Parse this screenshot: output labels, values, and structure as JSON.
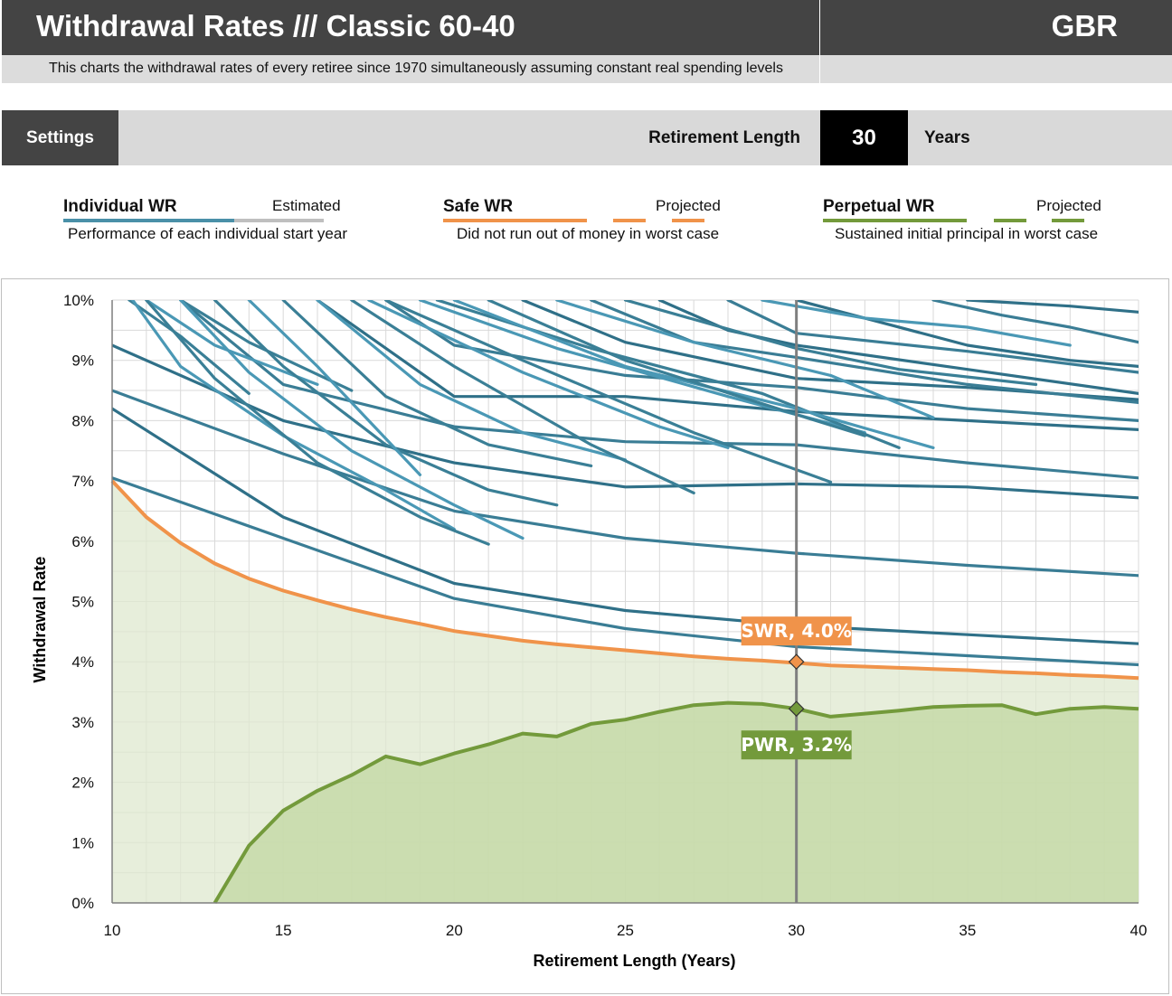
{
  "header": {
    "title": "Withdrawal Rates /// Classic 60-40",
    "country": "GBR",
    "subtitle": "This charts the withdrawal rates of every retiree since 1970 simultaneously assuming constant real spending levels"
  },
  "settings": {
    "button_label": "Settings",
    "retirement_length_label": "Retirement Length",
    "retirement_length_value": "30",
    "retirement_length_unit": "Years"
  },
  "legend": {
    "individual": {
      "title": "Individual WR",
      "projected_label": "Estimated",
      "description": "Performance of each individual start year",
      "color": "#4a90a8",
      "estimated_color": "#bfbfbf"
    },
    "safe": {
      "title": "Safe WR",
      "projected_label": "Projected",
      "description": "Did not run out of money in worst case",
      "color": "#f0934a"
    },
    "perpetual": {
      "title": "Perpetual WR",
      "projected_label": "Projected",
      "description": "Sustained initial principal in worst case",
      "color": "#739a3b"
    }
  },
  "chart_data": {
    "type": "line",
    "xlabel": "Retirement Length (Years)",
    "ylabel": "Withdrawal Rate",
    "xlim": [
      10,
      40
    ],
    "ylim": [
      0,
      10
    ],
    "x_ticks": [
      10,
      15,
      20,
      25,
      30,
      35,
      40
    ],
    "y_ticks": [
      "0%",
      "1%",
      "2%",
      "3%",
      "4%",
      "5%",
      "6%",
      "7%",
      "8%",
      "9%",
      "10%"
    ],
    "grid": true,
    "marker_x": 30,
    "annotations": [
      {
        "label": "SWR, 4.0%",
        "x": 30,
        "y": 4.0,
        "color": "#f0934a"
      },
      {
        "label": "PWR, 3.2%",
        "x": 30,
        "y": 3.22,
        "color": "#739a3b"
      }
    ],
    "safe_wr": {
      "x": [
        10,
        11,
        12,
        13,
        14,
        15,
        16,
        17,
        18,
        19,
        20,
        21,
        22,
        23,
        24,
        25,
        26,
        27,
        28,
        29,
        30,
        31,
        32,
        33,
        34,
        35,
        36,
        37,
        38,
        39,
        40
      ],
      "values": [
        7.0,
        6.4,
        5.97,
        5.63,
        5.38,
        5.18,
        5.02,
        4.87,
        4.74,
        4.63,
        4.51,
        4.43,
        4.35,
        4.29,
        4.24,
        4.19,
        4.14,
        4.09,
        4.05,
        4.02,
        3.98,
        3.94,
        3.92,
        3.9,
        3.88,
        3.86,
        3.83,
        3.81,
        3.78,
        3.76,
        3.73
      ]
    },
    "perpetual_wr": {
      "x": [
        13,
        14,
        15,
        16,
        17,
        18,
        19,
        20,
        21,
        22,
        23,
        24,
        25,
        26,
        27,
        28,
        29,
        30,
        31,
        32,
        33,
        34,
        35,
        36,
        37,
        38,
        39,
        40
      ],
      "values": [
        0.0,
        0.95,
        1.53,
        1.86,
        2.12,
        2.43,
        2.3,
        2.48,
        2.63,
        2.81,
        2.76,
        2.97,
        3.04,
        3.17,
        3.28,
        3.32,
        3.3,
        3.22,
        3.09,
        3.14,
        3.19,
        3.25,
        3.27,
        3.28,
        3.13,
        3.22,
        3.25,
        3.22
      ]
    },
    "individual_wr": [
      {
        "x": [
          10,
          15,
          20,
          25,
          30,
          35,
          40
        ],
        "values": [
          7.05,
          6.05,
          5.05,
          4.55,
          4.25,
          4.1,
          3.95
        ]
      },
      {
        "x": [
          10,
          15,
          20,
          25,
          30,
          35,
          40
        ],
        "values": [
          8.2,
          6.4,
          5.3,
          4.85,
          4.6,
          4.45,
          4.3
        ]
      },
      {
        "x": [
          10,
          15,
          20,
          25,
          30,
          35,
          40
        ],
        "values": [
          8.5,
          7.45,
          6.5,
          6.05,
          5.8,
          5.6,
          5.43
        ]
      },
      {
        "x": [
          10,
          15,
          20,
          25,
          30,
          35,
          40
        ],
        "values": [
          9.25,
          8.0,
          7.3,
          6.9,
          6.95,
          6.9,
          6.72
        ]
      },
      {
        "x": [
          12,
          15,
          20,
          25,
          30,
          35,
          40
        ],
        "values": [
          10.0,
          8.6,
          7.9,
          7.65,
          7.6,
          7.3,
          7.05
        ]
      },
      {
        "x": [
          16,
          20,
          25,
          30,
          35,
          40
        ],
        "values": [
          10.0,
          8.4,
          8.4,
          8.15,
          8.0,
          7.85
        ]
      },
      {
        "x": [
          18,
          20,
          25,
          30,
          35,
          40
        ],
        "values": [
          10.0,
          9.25,
          8.75,
          8.55,
          8.2,
          8.0
        ]
      },
      {
        "x": [
          22,
          25,
          30,
          35,
          40
        ],
        "values": [
          10.0,
          9.3,
          8.7,
          8.55,
          8.35
        ]
      },
      {
        "x": [
          24,
          27,
          30,
          35,
          40
        ],
        "values": [
          10.0,
          9.3,
          9.05,
          8.6,
          8.3
        ]
      },
      {
        "x": [
          26,
          28,
          30,
          35,
          40
        ],
        "values": [
          10.0,
          9.5,
          9.25,
          8.85,
          8.45
        ]
      },
      {
        "x": [
          28,
          30,
          35,
          40
        ],
        "values": [
          10.0,
          9.45,
          9.15,
          8.8
        ]
      },
      {
        "x": [
          30,
          35,
          38,
          40
        ],
        "values": [
          10.0,
          9.25,
          9.0,
          8.9
        ]
      },
      {
        "x": [
          34,
          36,
          38,
          40
        ],
        "values": [
          10.0,
          9.75,
          9.55,
          9.3
        ]
      },
      {
        "x": [
          35,
          38,
          40
        ],
        "values": [
          10.0,
          9.9,
          9.8
        ]
      },
      {
        "x": [
          10.5,
          12,
          14
        ],
        "values": [
          10.0,
          9.4,
          8.45
        ]
      },
      {
        "x": [
          11,
          13,
          16
        ],
        "values": [
          10.0,
          9.25,
          8.6
        ]
      },
      {
        "x": [
          12,
          14,
          17
        ],
        "values": [
          10.0,
          9.3,
          8.5
        ]
      },
      {
        "x": [
          10.6,
          12,
          15,
          18,
          20
        ],
        "values": [
          10.0,
          8.9,
          7.75,
          6.85,
          6.2
        ]
      },
      {
        "x": [
          11,
          13,
          16,
          19,
          21
        ],
        "values": [
          10.0,
          8.7,
          7.3,
          6.4,
          5.95
        ]
      },
      {
        "x": [
          12,
          14,
          17,
          20,
          22
        ],
        "values": [
          10.0,
          8.8,
          7.5,
          6.6,
          6.05
        ]
      },
      {
        "x": [
          13,
          15,
          18,
          21,
          23
        ],
        "values": [
          10.0,
          8.9,
          7.6,
          6.85,
          6.6
        ]
      },
      {
        "x": [
          14,
          16,
          19
        ],
        "values": [
          10.0,
          8.9,
          7.1
        ]
      },
      {
        "x": [
          15,
          18,
          21,
          24
        ],
        "values": [
          10.0,
          8.4,
          7.6,
          7.25
        ]
      },
      {
        "x": [
          16,
          19,
          22,
          25
        ],
        "values": [
          10.0,
          8.6,
          7.8,
          7.35
        ]
      },
      {
        "x": [
          17,
          20,
          24,
          27
        ],
        "values": [
          10.0,
          8.9,
          7.6,
          6.8
        ]
      },
      {
        "x": [
          17.5,
          22,
          26,
          28
        ],
        "values": [
          10.0,
          8.8,
          7.9,
          7.55
        ]
      },
      {
        "x": [
          18,
          22,
          27,
          31
        ],
        "values": [
          10.0,
          9.0,
          7.8,
          6.98
        ]
      },
      {
        "x": [
          19,
          23,
          28,
          32
        ],
        "values": [
          10.0,
          9.2,
          8.4,
          7.8
        ]
      },
      {
        "x": [
          19.5,
          24,
          29,
          33
        ],
        "values": [
          10.0,
          9.2,
          8.45,
          7.55
        ]
      },
      {
        "x": [
          20,
          25,
          30,
          34
        ],
        "values": [
          10.0,
          8.9,
          8.2,
          7.55
        ]
      },
      {
        "x": [
          21,
          25,
          30,
          32
        ],
        "values": [
          10.0,
          9.0,
          8.1,
          7.75
        ]
      },
      {
        "x": [
          23,
          27,
          31,
          34
        ],
        "values": [
          10.0,
          9.3,
          8.75,
          8.05
        ]
      },
      {
        "x": [
          25,
          30,
          33,
          37
        ],
        "values": [
          10.0,
          9.2,
          8.85,
          8.6
        ]
      },
      {
        "x": [
          29,
          32,
          35,
          38
        ],
        "values": [
          10.0,
          9.7,
          9.55,
          9.25
        ]
      }
    ]
  }
}
